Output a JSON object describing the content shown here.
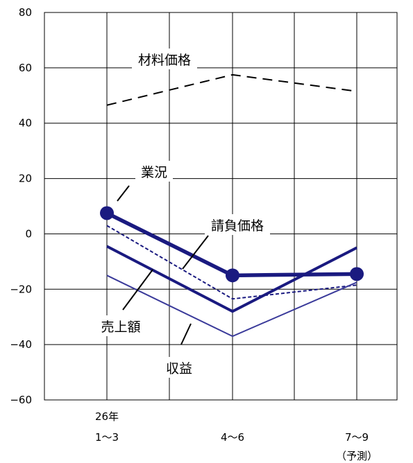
{
  "chart_data": {
    "type": "line",
    "categories": [
      [
        "26年",
        "1〜3"
      ],
      [
        "4〜6"
      ],
      [
        "7〜9",
        "（予測）"
      ]
    ],
    "ylim": [
      -60,
      80
    ],
    "yticks": [
      80,
      60,
      40,
      20,
      0,
      -20,
      -40,
      -60
    ],
    "ytick_labels": [
      "80",
      "60",
      "40",
      "20",
      "0",
      "−20",
      "−40",
      "−60"
    ],
    "grid": true,
    "colors": {
      "navy": "#1a1a80",
      "violet": "#3a3a9a",
      "black": "#000000",
      "grid": "#000000"
    },
    "series": [
      {
        "name": "材料価格",
        "values": [
          46.5,
          57.5,
          51.5
        ],
        "color": "#000000",
        "style": "dash",
        "markers": false,
        "label_at": [
          0.82,
          0.5
        ]
      },
      {
        "name": "業況",
        "values": [
          7.5,
          -15,
          -14.5
        ],
        "color": "#1a1a80",
        "style": "thick",
        "markers": true,
        "label_at": [
          0.32,
          14
        ]
      },
      {
        "name": "請負価格",
        "values": [
          3,
          -23.5,
          -18.5
        ],
        "color": "#1a1a80",
        "style": "dotted",
        "markers": false,
        "label_at": [
          1.05,
          -6
        ]
      },
      {
        "name": "売上額",
        "values": [
          -4.5,
          -28,
          -5
        ],
        "color": "#1a1a80",
        "style": "medium",
        "markers": false,
        "label_at": [
          0.18,
          -32
        ]
      },
      {
        "name": "収益",
        "values": [
          -15,
          -37,
          -17.5
        ],
        "color": "#3a3a9a",
        "style": "thin",
        "markers": false,
        "label_at": [
          0.72,
          -48.5
        ]
      }
    ]
  }
}
